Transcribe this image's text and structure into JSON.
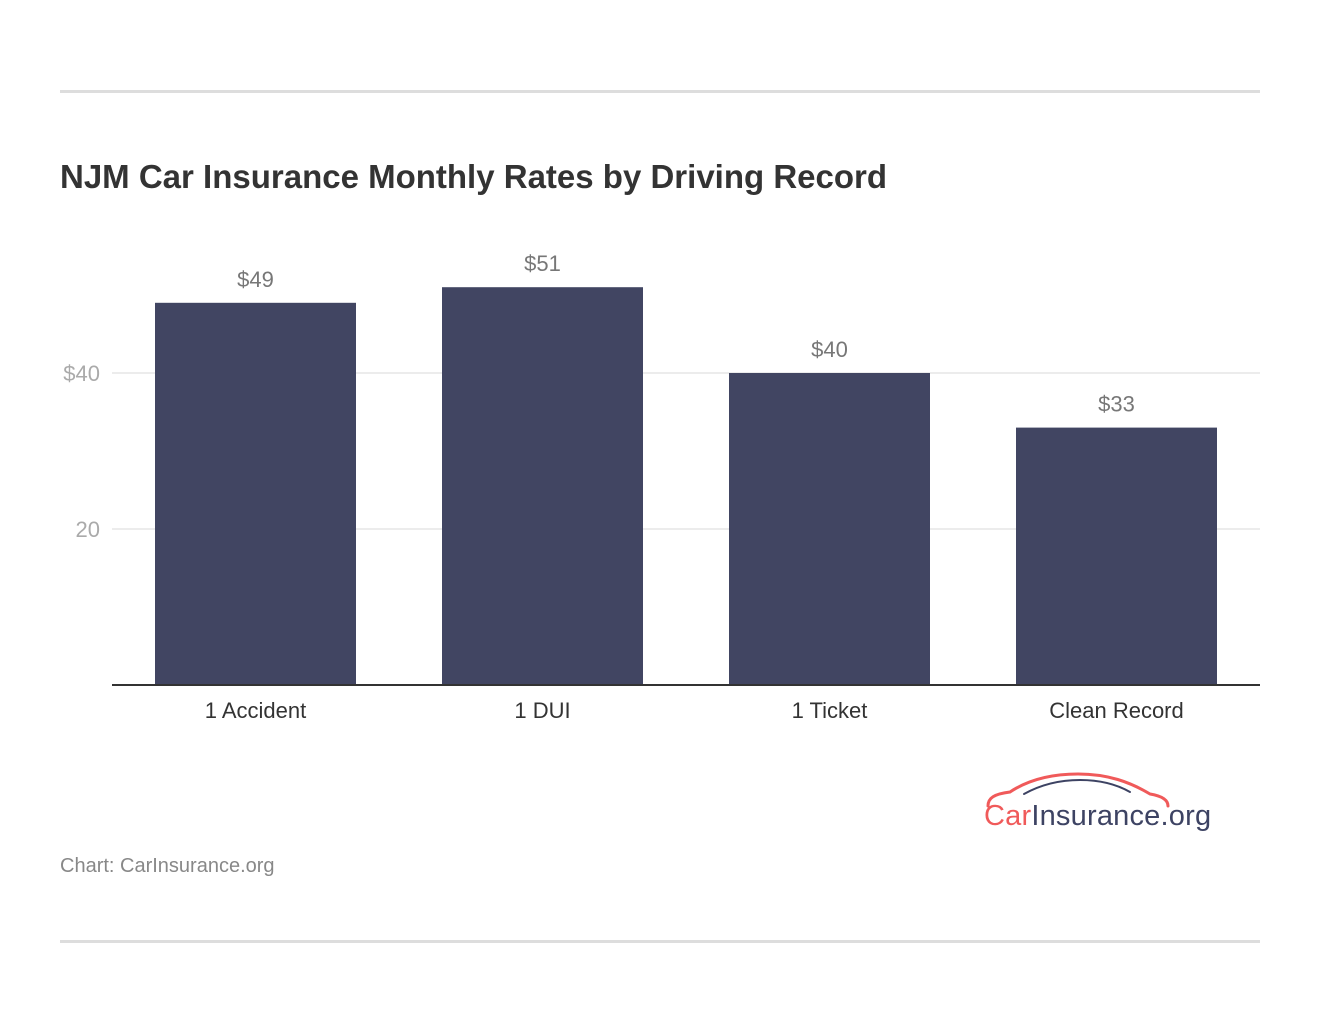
{
  "header": {
    "title": "NJM Car Insurance Monthly Rates by Driving Record"
  },
  "footer": {
    "source": "Chart: CarInsurance.org"
  },
  "logo": {
    "part1": "Car",
    "part2": "Insurance.org"
  },
  "colors": {
    "bar": "#414562",
    "grid": "#e5e5e5",
    "axis": "#333333",
    "tick_label": "#aaaaaa",
    "value_label": "#777777",
    "category_label": "#333333",
    "logo_red": "#f05a5a",
    "logo_navy": "#3d4363"
  },
  "chart_data": {
    "type": "bar",
    "title": "NJM Car Insurance Monthly Rates by Driving Record",
    "categories": [
      "1 Accident",
      "1 DUI",
      "1 Ticket",
      "Clean Record"
    ],
    "values": [
      49,
      51,
      40,
      33
    ],
    "value_labels": [
      "$49",
      "$51",
      "$40",
      "$33"
    ],
    "yticks": [
      20,
      40
    ],
    "ytick_labels": [
      "20",
      "$40"
    ],
    "ylim": [
      0,
      55
    ],
    "xlabel": "",
    "ylabel": "",
    "grid": true,
    "legend": "none"
  }
}
